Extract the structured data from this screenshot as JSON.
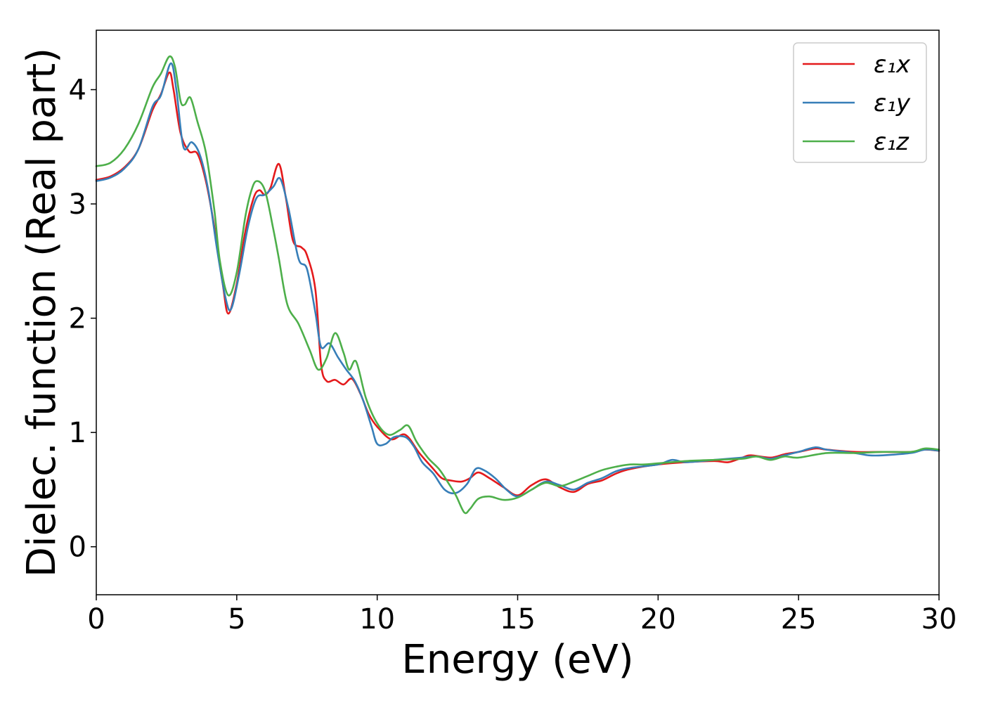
{
  "chart_data": {
    "type": "line",
    "xlabel": "Energy (eV)",
    "ylabel": "Dielec. function (Real part)",
    "xlim": [
      0,
      30
    ],
    "ylim": [
      -0.42,
      4.52
    ],
    "xticks": [
      0,
      5,
      10,
      15,
      20,
      25,
      30
    ],
    "yticks": [
      0,
      1,
      2,
      3,
      4
    ],
    "grid": false,
    "legend_position": "top-right",
    "series": [
      {
        "name": "ε₁x",
        "color": "#e41a1c",
        "points": [
          [
            0,
            3.21
          ],
          [
            0.5,
            3.24
          ],
          [
            1.0,
            3.32
          ],
          [
            1.5,
            3.48
          ],
          [
            2.0,
            3.82
          ],
          [
            2.3,
            3.96
          ],
          [
            2.6,
            4.15
          ],
          [
            2.75,
            4.0
          ],
          [
            3.0,
            3.62
          ],
          [
            3.3,
            3.46
          ],
          [
            3.6,
            3.44
          ],
          [
            3.9,
            3.2
          ],
          [
            4.2,
            2.8
          ],
          [
            4.5,
            2.3
          ],
          [
            4.7,
            2.04
          ],
          [
            5.0,
            2.3
          ],
          [
            5.3,
            2.75
          ],
          [
            5.6,
            3.05
          ],
          [
            5.8,
            3.12
          ],
          [
            6.0,
            3.08
          ],
          [
            6.2,
            3.14
          ],
          [
            6.5,
            3.35
          ],
          [
            6.75,
            3.05
          ],
          [
            7.0,
            2.68
          ],
          [
            7.3,
            2.62
          ],
          [
            7.5,
            2.55
          ],
          [
            7.8,
            2.25
          ],
          [
            8.0,
            1.6
          ],
          [
            8.2,
            1.45
          ],
          [
            8.5,
            1.46
          ],
          [
            8.8,
            1.42
          ],
          [
            9.1,
            1.47
          ],
          [
            9.4,
            1.34
          ],
          [
            9.7,
            1.16
          ],
          [
            10.0,
            1.05
          ],
          [
            10.5,
            0.94
          ],
          [
            11.0,
            0.98
          ],
          [
            11.5,
            0.82
          ],
          [
            12.0,
            0.68
          ],
          [
            12.3,
            0.6
          ],
          [
            12.6,
            0.58
          ],
          [
            13.0,
            0.57
          ],
          [
            13.3,
            0.6
          ],
          [
            13.6,
            0.65
          ],
          [
            14.0,
            0.6
          ],
          [
            14.5,
            0.52
          ],
          [
            15.0,
            0.45
          ],
          [
            15.5,
            0.54
          ],
          [
            16.0,
            0.59
          ],
          [
            16.5,
            0.52
          ],
          [
            17.0,
            0.48
          ],
          [
            17.5,
            0.55
          ],
          [
            18.0,
            0.58
          ],
          [
            18.5,
            0.64
          ],
          [
            19.0,
            0.68
          ],
          [
            20.0,
            0.72
          ],
          [
            21.0,
            0.74
          ],
          [
            22.0,
            0.75
          ],
          [
            22.5,
            0.74
          ],
          [
            23.0,
            0.78
          ],
          [
            23.3,
            0.8
          ],
          [
            24.0,
            0.78
          ],
          [
            24.5,
            0.81
          ],
          [
            25.0,
            0.83
          ],
          [
            25.6,
            0.86
          ],
          [
            26.0,
            0.85
          ],
          [
            27.0,
            0.83
          ],
          [
            28.0,
            0.83
          ],
          [
            29.0,
            0.83
          ],
          [
            29.5,
            0.85
          ],
          [
            30.0,
            0.84
          ]
        ]
      },
      {
        "name": "ε₁y",
        "color": "#377eb8",
        "points": [
          [
            0,
            3.2
          ],
          [
            0.5,
            3.23
          ],
          [
            1.0,
            3.31
          ],
          [
            1.5,
            3.48
          ],
          [
            2.0,
            3.85
          ],
          [
            2.3,
            3.95
          ],
          [
            2.65,
            4.23
          ],
          [
            2.85,
            4.0
          ],
          [
            3.1,
            3.5
          ],
          [
            3.4,
            3.54
          ],
          [
            3.7,
            3.42
          ],
          [
            4.0,
            3.1
          ],
          [
            4.3,
            2.6
          ],
          [
            4.6,
            2.18
          ],
          [
            4.8,
            2.08
          ],
          [
            5.1,
            2.4
          ],
          [
            5.4,
            2.8
          ],
          [
            5.7,
            3.05
          ],
          [
            6.0,
            3.08
          ],
          [
            6.3,
            3.15
          ],
          [
            6.55,
            3.22
          ],
          [
            6.85,
            2.95
          ],
          [
            7.2,
            2.52
          ],
          [
            7.5,
            2.43
          ],
          [
            7.8,
            2.05
          ],
          [
            8.0,
            1.75
          ],
          [
            8.3,
            1.78
          ],
          [
            8.6,
            1.66
          ],
          [
            8.9,
            1.55
          ],
          [
            9.2,
            1.45
          ],
          [
            9.5,
            1.28
          ],
          [
            9.8,
            1.05
          ],
          [
            10.0,
            0.9
          ],
          [
            10.3,
            0.9
          ],
          [
            10.6,
            0.96
          ],
          [
            11.0,
            0.96
          ],
          [
            11.3,
            0.88
          ],
          [
            11.6,
            0.74
          ],
          [
            12.0,
            0.64
          ],
          [
            12.4,
            0.5
          ],
          [
            12.8,
            0.47
          ],
          [
            13.2,
            0.55
          ],
          [
            13.5,
            0.68
          ],
          [
            13.8,
            0.67
          ],
          [
            14.2,
            0.6
          ],
          [
            14.6,
            0.5
          ],
          [
            15.0,
            0.44
          ],
          [
            15.5,
            0.5
          ],
          [
            16.0,
            0.57
          ],
          [
            16.5,
            0.54
          ],
          [
            17.0,
            0.5
          ],
          [
            17.5,
            0.56
          ],
          [
            18.0,
            0.6
          ],
          [
            18.5,
            0.66
          ],
          [
            19.0,
            0.69
          ],
          [
            20.0,
            0.72
          ],
          [
            20.5,
            0.76
          ],
          [
            21.0,
            0.74
          ],
          [
            22.0,
            0.76
          ],
          [
            23.0,
            0.78
          ],
          [
            23.5,
            0.79
          ],
          [
            24.0,
            0.77
          ],
          [
            24.5,
            0.8
          ],
          [
            25.0,
            0.83
          ],
          [
            25.6,
            0.87
          ],
          [
            26.0,
            0.85
          ],
          [
            27.0,
            0.82
          ],
          [
            27.5,
            0.8
          ],
          [
            28.0,
            0.8
          ],
          [
            29.0,
            0.82
          ],
          [
            29.5,
            0.85
          ],
          [
            30.0,
            0.84
          ]
        ]
      },
      {
        "name": "ε₁z",
        "color": "#4daf4a",
        "points": [
          [
            0,
            3.33
          ],
          [
            0.5,
            3.36
          ],
          [
            1.0,
            3.48
          ],
          [
            1.5,
            3.7
          ],
          [
            2.0,
            4.02
          ],
          [
            2.3,
            4.14
          ],
          [
            2.6,
            4.29
          ],
          [
            2.8,
            4.2
          ],
          [
            3.0,
            3.9
          ],
          [
            3.15,
            3.87
          ],
          [
            3.35,
            3.93
          ],
          [
            3.6,
            3.72
          ],
          [
            3.9,
            3.45
          ],
          [
            4.2,
            2.95
          ],
          [
            4.4,
            2.5
          ],
          [
            4.7,
            2.2
          ],
          [
            5.0,
            2.4
          ],
          [
            5.3,
            2.88
          ],
          [
            5.5,
            3.1
          ],
          [
            5.7,
            3.2
          ],
          [
            6.0,
            3.12
          ],
          [
            6.3,
            2.78
          ],
          [
            6.5,
            2.52
          ],
          [
            6.8,
            2.12
          ],
          [
            7.2,
            1.95
          ],
          [
            7.6,
            1.72
          ],
          [
            7.9,
            1.55
          ],
          [
            8.2,
            1.65
          ],
          [
            8.5,
            1.87
          ],
          [
            8.8,
            1.7
          ],
          [
            9.0,
            1.55
          ],
          [
            9.25,
            1.62
          ],
          [
            9.6,
            1.3
          ],
          [
            10.0,
            1.08
          ],
          [
            10.4,
            0.98
          ],
          [
            10.8,
            1.02
          ],
          [
            11.1,
            1.06
          ],
          [
            11.4,
            0.92
          ],
          [
            11.8,
            0.78
          ],
          [
            12.2,
            0.68
          ],
          [
            12.5,
            0.57
          ],
          [
            12.8,
            0.45
          ],
          [
            13.1,
            0.3
          ],
          [
            13.3,
            0.33
          ],
          [
            13.6,
            0.42
          ],
          [
            14.0,
            0.44
          ],
          [
            14.5,
            0.41
          ],
          [
            15.0,
            0.43
          ],
          [
            15.5,
            0.5
          ],
          [
            16.0,
            0.56
          ],
          [
            16.5,
            0.53
          ],
          [
            17.0,
            0.57
          ],
          [
            17.5,
            0.62
          ],
          [
            18.0,
            0.67
          ],
          [
            18.5,
            0.7
          ],
          [
            19.0,
            0.72
          ],
          [
            19.5,
            0.72
          ],
          [
            20.0,
            0.73
          ],
          [
            21.0,
            0.75
          ],
          [
            22.0,
            0.76
          ],
          [
            23.0,
            0.77
          ],
          [
            23.5,
            0.79
          ],
          [
            24.0,
            0.76
          ],
          [
            24.5,
            0.79
          ],
          [
            25.0,
            0.78
          ],
          [
            26.0,
            0.82
          ],
          [
            27.0,
            0.82
          ],
          [
            28.0,
            0.83
          ],
          [
            29.0,
            0.83
          ],
          [
            29.5,
            0.86
          ],
          [
            30.0,
            0.85
          ]
        ]
      }
    ]
  }
}
